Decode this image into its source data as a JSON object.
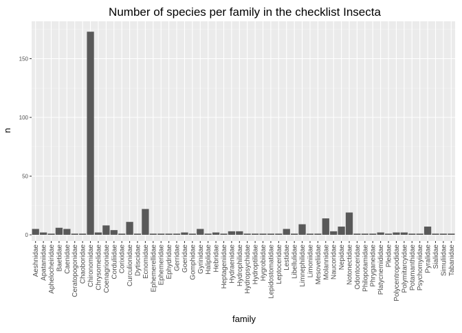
{
  "chart_data": {
    "type": "bar",
    "title": "Number of species per family in the checklist Insecta",
    "xlabel": "family",
    "ylabel": "n",
    "ylim": [
      0,
      180
    ],
    "yticks": [
      0,
      50,
      100,
      150
    ],
    "grid": true,
    "legend": "none",
    "colors": {
      "bar": "#595959",
      "panel": "#ebebeb",
      "grid_major": "#ffffff",
      "grid_minor": "#f5f5f5",
      "tick": "#333333",
      "tick_label": "#4d4d4d"
    },
    "categories": [
      "Aeshnidae",
      "Apataniidae",
      "Aphelocheiridae",
      "Baetidae",
      "Caenidae",
      "Ceratopogonidae",
      "Chaoboridae",
      "Chironomidae",
      "Chrysomelidae",
      "Coenagrionidae",
      "Corduliidae",
      "Corixidae",
      "Curculionidae",
      "Dytiscidae",
      "Ecnomidae",
      "Ephemerellidae",
      "Ephemeridae",
      "Ephydridae",
      "Gerridae",
      "Goeridae",
      "Gomphidae",
      "Gyrinidae",
      "Haliplidae",
      "Hebridae",
      "Heptageniidae",
      "Hydraenidae",
      "Hydrophilidae",
      "Hydropsychidae",
      "Hydroptilidae",
      "Hygrobiidae",
      "Lepidostomatidae",
      "Leptoceridae",
      "Lestidae",
      "Libellulidae",
      "Limnephilidae",
      "Limoniidae",
      "Mesoveliidae",
      "Molannidae",
      "Naucoridae",
      "Nepidae",
      "Notonectidae",
      "Odontoceridae",
      "Philopotamidae",
      "Phryganeidae",
      "Platycnemididae",
      "Pleidae",
      "Polycentropodidae",
      "Polymitarcyidae",
      "Potamanthidae",
      "Psychomyiidae",
      "Pyralidae",
      "Sialidae",
      "Simuliidae",
      "Tabanidae"
    ],
    "values": [
      5,
      2,
      1,
      6,
      5,
      1,
      1,
      173,
      2,
      8,
      4,
      1,
      11,
      1,
      22,
      1,
      1,
      1,
      1,
      2,
      1,
      5,
      1,
      2,
      1,
      3,
      3,
      1,
      1,
      1,
      1,
      1,
      5,
      1,
      9,
      1,
      1,
      14,
      3,
      7,
      19,
      1,
      1,
      1,
      2,
      1,
      2,
      2,
      1,
      1,
      7,
      1,
      1,
      1
    ]
  }
}
